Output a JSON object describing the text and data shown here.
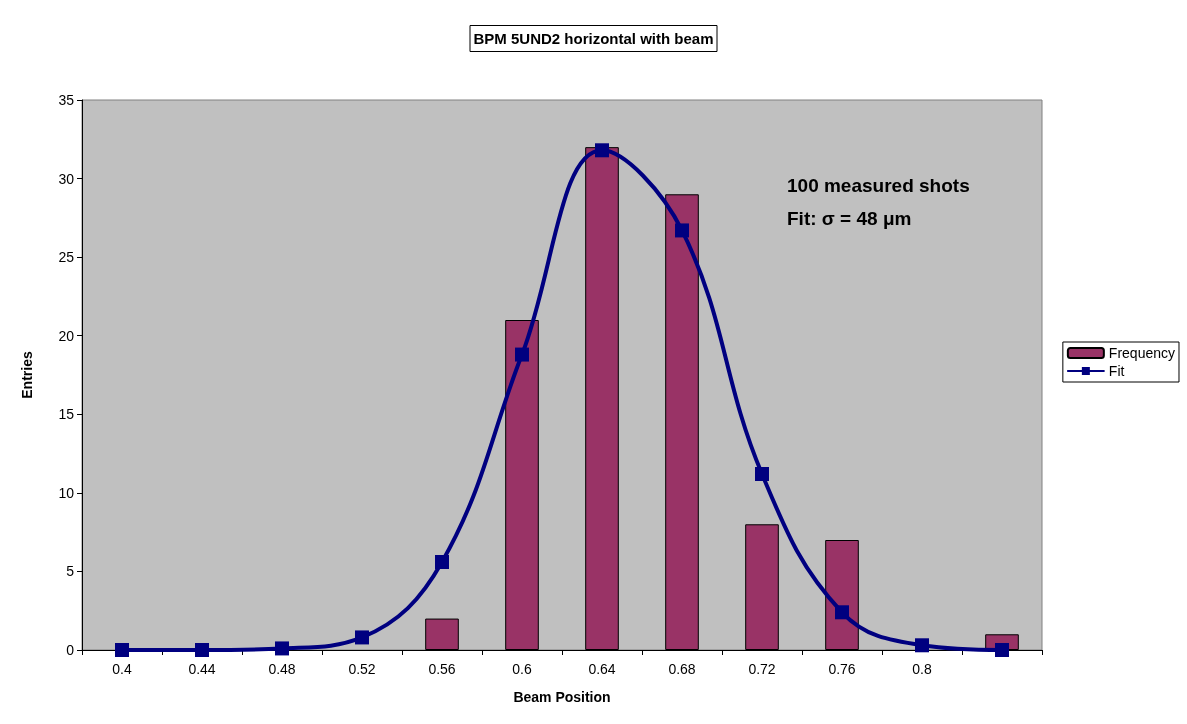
{
  "chart_data": {
    "type": "bar",
    "title": "BPM 5UND2 horizontal with beam",
    "xlabel": "Beam Position",
    "ylabel": "Entries",
    "categories": [
      "0.4",
      "0.44",
      "0.48",
      "0.52",
      "0.56",
      "0.6",
      "0.64",
      "0.68",
      "0.72",
      "0.76",
      "0.8",
      null
    ],
    "series": [
      {
        "name": "Frequency",
        "color": "#993366",
        "values": [
          0,
          0,
          0,
          0,
          2,
          21,
          32,
          29,
          8,
          7,
          0,
          1
        ]
      },
      {
        "name": "Fit",
        "type": "line",
        "color": "#000080",
        "marker": "square",
        "line_style": "solid",
        "values": [
          0,
          0,
          0.1,
          0.8,
          5.6,
          18.8,
          31.8,
          26.7,
          11.2,
          2.4,
          0.3,
          0
        ]
      }
    ],
    "ylim": [
      0,
      35
    ],
    "yticks": [
      0,
      5,
      10,
      15,
      20,
      25,
      30,
      35
    ],
    "grid": false,
    "legend": "right",
    "annotations": [
      "100 measured shots",
      "Fit: σ = 48 μm"
    ]
  }
}
